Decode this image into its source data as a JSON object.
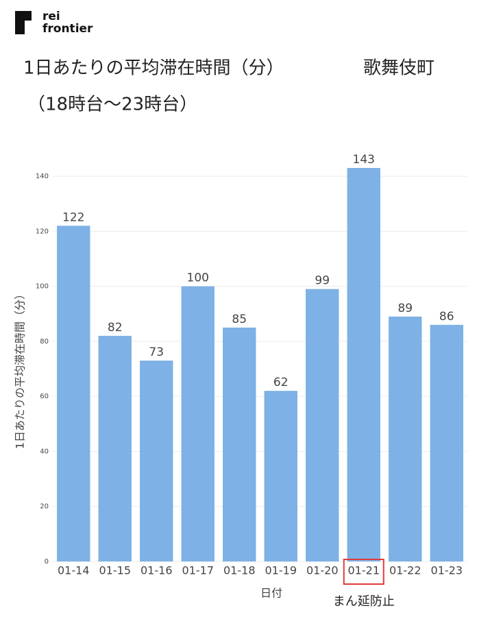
{
  "logo": {
    "line1": "rei",
    "line2": "frontier"
  },
  "chart_data": {
    "type": "bar",
    "title": "1日あたりの平均滞在時間（分）",
    "area": "歌舞伎町",
    "subtitle": "（18時台〜23時台）",
    "x_label": "日付",
    "y_label": "1日あたりの平均滞在時間（分）",
    "categories": [
      "01-14",
      "01-15",
      "01-16",
      "01-17",
      "01-18",
      "01-19",
      "01-20",
      "01-21",
      "01-22",
      "01-23"
    ],
    "values": [
      122,
      82,
      73,
      100,
      85,
      62,
      99,
      143,
      89,
      86
    ],
    "color": "#7eb1e5",
    "ylim": [
      0,
      145
    ],
    "yticks": [
      0,
      20,
      40,
      60,
      80,
      100,
      120,
      140
    ],
    "grid": true,
    "annotation": {
      "category_index": 7,
      "text": "まん延防止",
      "color": "#e03a3a"
    }
  }
}
